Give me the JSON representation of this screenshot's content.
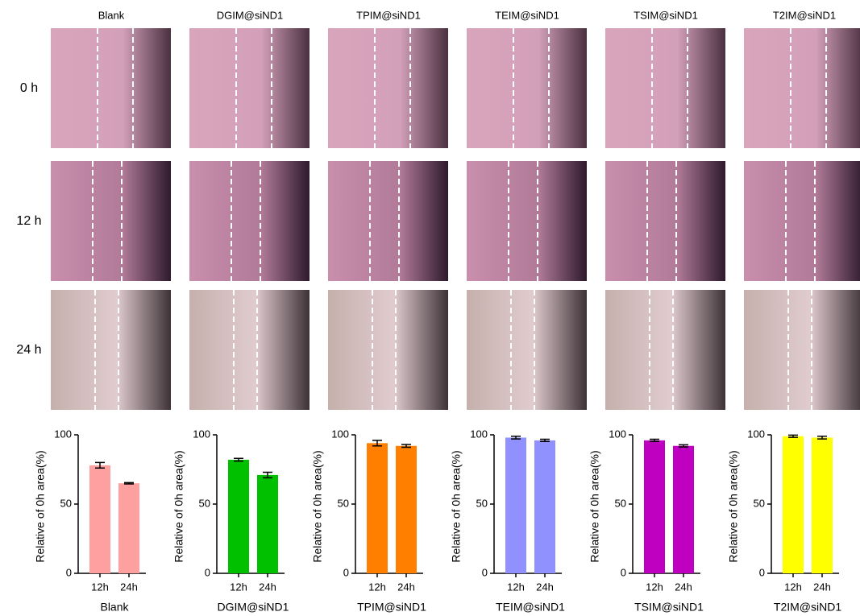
{
  "panel": {
    "columns": [
      "Blank",
      "DGIM@siND1",
      "TPIM@siND1",
      "TEIM@siND1",
      "TSIM@siND1",
      "T2IM@siND1"
    ],
    "rows": [
      "0 h",
      "12 h",
      "24 h"
    ]
  },
  "chart_data": [
    {
      "type": "bar",
      "xlabel": "Blank",
      "ylabel": "Relative of 0h area(%)",
      "categories": [
        "12h",
        "24h"
      ],
      "values": [
        78,
        65
      ],
      "errors": [
        2,
        0.5
      ],
      "color": "#ffa0a0",
      "ylim": [
        0,
        100
      ],
      "yticks": [
        0,
        50,
        100
      ]
    },
    {
      "type": "bar",
      "xlabel": "DGIM@siND1",
      "ylabel": "Relative of 0h area(%)",
      "categories": [
        "12h",
        "24h"
      ],
      "values": [
        82,
        71
      ],
      "errors": [
        1,
        2
      ],
      "color": "#00c000",
      "ylim": [
        0,
        100
      ],
      "yticks": [
        0,
        50,
        100
      ]
    },
    {
      "type": "bar",
      "xlabel": "TPIM@siND1",
      "ylabel": "Relative of 0h area(%)",
      "categories": [
        "12h",
        "24h"
      ],
      "values": [
        94,
        92
      ],
      "errors": [
        2,
        1
      ],
      "color": "#ff8000",
      "ylim": [
        0,
        100
      ],
      "yticks": [
        0,
        50,
        100
      ]
    },
    {
      "type": "bar",
      "xlabel": "TEIM@siND1",
      "ylabel": "Relative of 0h area(%)",
      "categories": [
        "12h",
        "24h"
      ],
      "values": [
        98,
        96
      ],
      "errors": [
        1,
        0.8
      ],
      "color": "#9090ff",
      "ylim": [
        0,
        100
      ],
      "yticks": [
        0,
        50,
        100
      ]
    },
    {
      "type": "bar",
      "xlabel": "TSIM@siND1",
      "ylabel": "Relative of 0h area(%)",
      "categories": [
        "12h",
        "24h"
      ],
      "values": [
        96,
        92
      ],
      "errors": [
        0.8,
        0.8
      ],
      "color": "#c000c0",
      "ylim": [
        0,
        100
      ],
      "yticks": [
        0,
        50,
        100
      ]
    },
    {
      "type": "bar",
      "xlabel": "T2IM@siND1",
      "ylabel": "Relative of 0h area(%)",
      "categories": [
        "12h",
        "24h"
      ],
      "values": [
        99,
        98
      ],
      "errors": [
        0.8,
        1
      ],
      "color": "#ffff00",
      "ylim": [
        0,
        100
      ],
      "yticks": [
        0,
        50,
        100
      ]
    }
  ]
}
